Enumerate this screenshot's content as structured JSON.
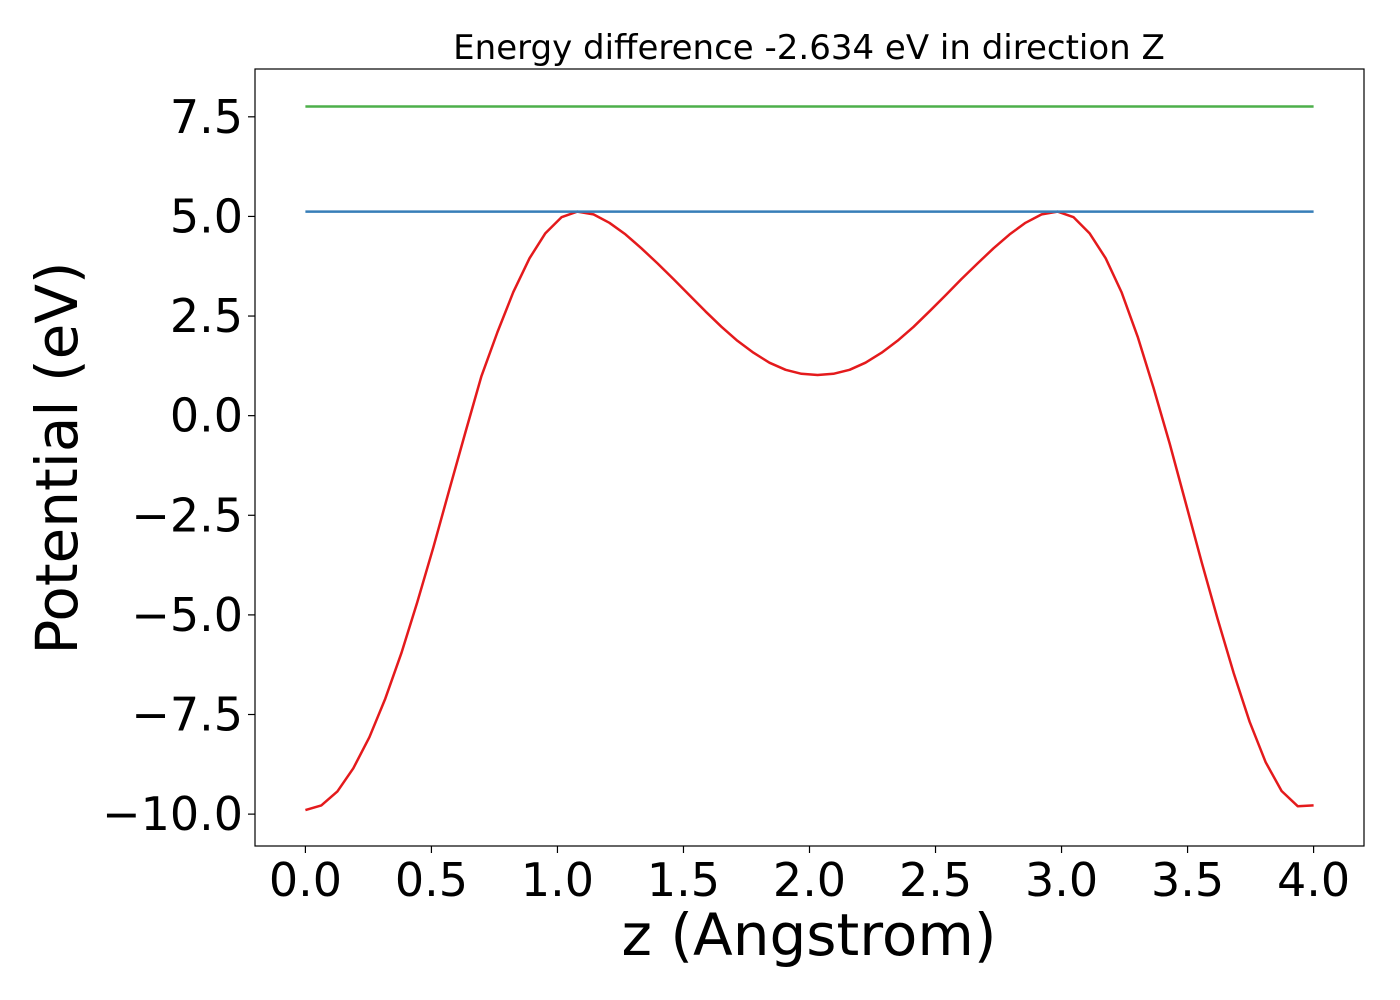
{
  "chart_data": {
    "type": "line",
    "title": "Energy difference -2.634 eV in direction Z",
    "xlabel": "z (Angstrom)",
    "ylabel": "Potential (eV)",
    "xlim": [
      -0.2,
      4.2
    ],
    "ylim": [
      -10.8,
      8.7
    ],
    "grid": false,
    "xticks": [
      0.0,
      0.5,
      1.0,
      1.5,
      2.0,
      2.5,
      3.0,
      3.5,
      4.0
    ],
    "xtick_labels": [
      "0.0",
      "0.5",
      "1.0",
      "1.5",
      "2.0",
      "2.5",
      "3.0",
      "3.5",
      "4.0"
    ],
    "yticks": [
      7.5,
      5.0,
      2.5,
      0.0,
      -2.5,
      -5.0,
      -7.5,
      -10.0
    ],
    "ytick_labels": [
      "7.5",
      "5.0",
      "2.5",
      "0.0",
      "−2.5",
      "−5.0",
      "−7.5",
      "−10.0"
    ],
    "series": [
      {
        "color": "#e41a1c",
        "x": [
          0.0,
          0.063,
          0.127,
          0.19,
          0.254,
          0.317,
          0.381,
          0.444,
          0.508,
          0.571,
          0.635,
          0.698,
          0.762,
          0.825,
          0.889,
          0.952,
          1.016,
          1.079,
          1.143,
          1.206,
          1.27,
          1.333,
          1.397,
          1.46,
          1.524,
          1.587,
          1.651,
          1.714,
          1.778,
          1.841,
          1.905,
          1.968,
          2.032,
          2.095,
          2.159,
          2.222,
          2.286,
          2.349,
          2.413,
          2.476,
          2.54,
          2.603,
          2.667,
          2.73,
          2.794,
          2.857,
          2.921,
          2.984,
          3.048,
          3.111,
          3.175,
          3.238,
          3.302,
          3.365,
          3.429,
          3.492,
          3.556,
          3.619,
          3.683,
          3.746,
          3.81,
          3.873,
          3.937,
          4.0
        ],
        "y": [
          -9.9,
          -9.78,
          -9.43,
          -8.85,
          -8.07,
          -7.1,
          -5.96,
          -4.68,
          -3.3,
          -1.86,
          -0.41,
          0.98,
          2.1,
          3.1,
          3.95,
          4.58,
          4.98,
          5.12,
          5.05,
          4.84,
          4.55,
          4.2,
          3.82,
          3.43,
          3.02,
          2.62,
          2.23,
          1.88,
          1.58,
          1.33,
          1.15,
          1.05,
          1.02,
          1.05,
          1.15,
          1.33,
          1.58,
          1.88,
          2.23,
          2.62,
          3.02,
          3.43,
          3.82,
          4.2,
          4.55,
          4.84,
          5.05,
          5.12,
          4.98,
          4.58,
          3.95,
          3.1,
          1.98,
          0.7,
          -0.7,
          -2.18,
          -3.68,
          -5.1,
          -6.46,
          -7.68,
          -8.7,
          -9.42,
          -9.8,
          -9.78
        ]
      },
      {
        "color": "#377eb8",
        "x": [
          0.0,
          4.0
        ],
        "y": [
          5.12,
          5.12
        ]
      },
      {
        "color": "#4daf4a",
        "x": [
          0.0,
          4.0
        ],
        "y": [
          7.76,
          7.76
        ]
      }
    ]
  }
}
